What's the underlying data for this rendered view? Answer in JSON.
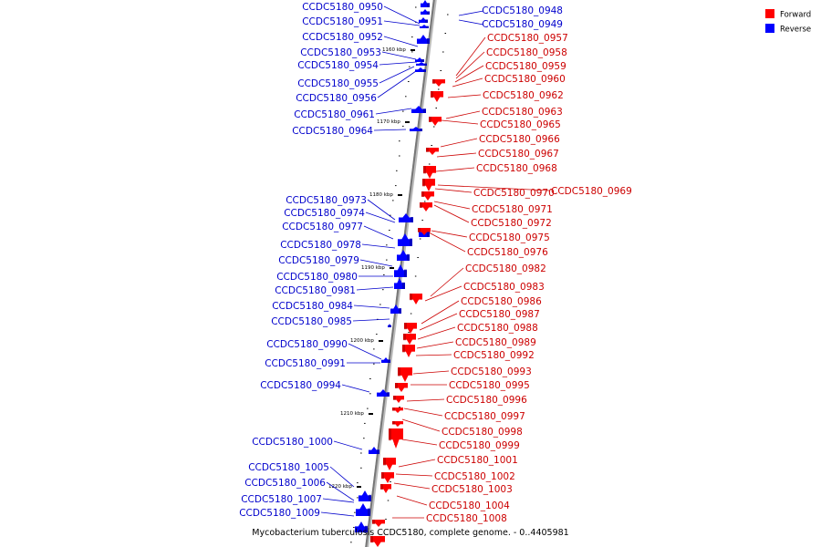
{
  "legend": [
    {
      "label": "Forward",
      "color": "#ff0000"
    },
    {
      "label": "Reverse",
      "color": "#0000ff"
    }
  ],
  "caption": "Mycobacterium tuberculosis CCDC5180, complete genome. - 0..4405981",
  "colors": {
    "forward": "#ff0000",
    "reverse": "#0000ff",
    "forward_label": "#cc0000",
    "reverse_label": "#0000cc",
    "backbone": "#888888"
  },
  "kbp_markers": [
    "1160 kbp",
    "1170 kbp",
    "1180 kbp",
    "1190 kbp",
    "1200 kbp",
    "1210 kbp",
    "1220 kbp"
  ],
  "reverse_genes": [
    "CCDC5180_0950",
    "CCDC5180_0951",
    "CCDC5180_0952",
    "CCDC5180_0953",
    "CCDC5180_0954",
    "CCDC5180_0955",
    "CCDC5180_0956",
    "CCDC5180_0961",
    "CCDC5180_0964",
    "CCDC5180_0973",
    "CCDC5180_0974",
    "CCDC5180_0977",
    "CCDC5180_0978",
    "CCDC5180_0979",
    "CCDC5180_0980",
    "CCDC5180_0981",
    "CCDC5180_0984",
    "CCDC5180_0985",
    "CCDC5180_0990",
    "CCDC5180_0991",
    "CCDC5180_0994",
    "CCDC5180_1000",
    "CCDC5180_1005",
    "CCDC5180_1006",
    "CCDC5180_1007",
    "CCDC5180_1009",
    "CCDC5180_0948",
    "CCDC5180_0949"
  ],
  "forward_genes": [
    "CCDC5180_0957",
    "CCDC5180_0958",
    "CCDC5180_0959",
    "CCDC5180_0960",
    "CCDC5180_0962",
    "CCDC5180_0963",
    "CCDC5180_0965",
    "CCDC5180_0966",
    "CCDC5180_0967",
    "CCDC5180_0968",
    "CCDC5180_0970",
    "CCDC5180_0969",
    "CCDC5180_0971",
    "CCDC5180_0972",
    "CCDC5180_0975",
    "CCDC5180_0976",
    "CCDC5180_0982",
    "CCDC5180_0983",
    "CCDC5180_0986",
    "CCDC5180_0987",
    "CCDC5180_0988",
    "CCDC5180_0989",
    "CCDC5180_0992",
    "CCDC5180_0993",
    "CCDC5180_0995",
    "CCDC5180_0996",
    "CCDC5180_0997",
    "CCDC5180_0998",
    "CCDC5180_0999",
    "CCDC5180_1001",
    "CCDC5180_1002",
    "CCDC5180_1003",
    "CCDC5180_1004",
    "CCDC5180_1008"
  ]
}
